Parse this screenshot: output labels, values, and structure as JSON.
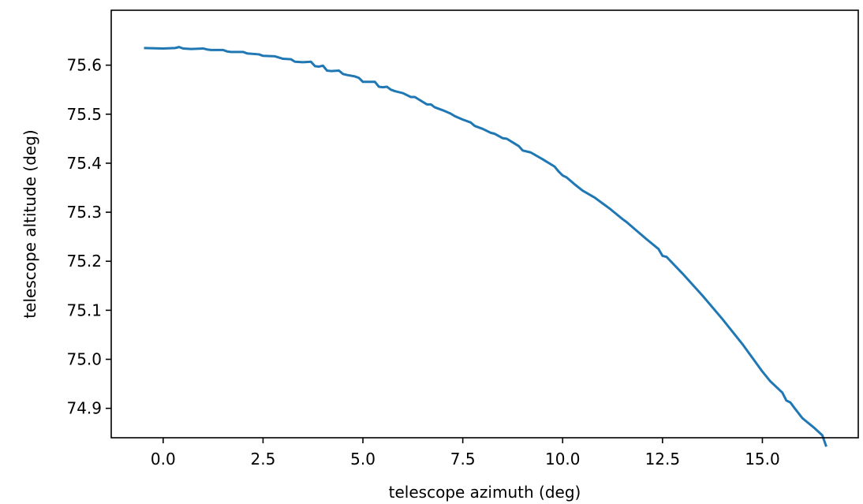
{
  "chart_data": {
    "type": "line",
    "title": "",
    "xlabel": "telescope azimuth (deg)",
    "ylabel": "telescope altitude (deg)",
    "xlim": [
      -1.3,
      17.4
    ],
    "ylim": [
      74.84,
      75.712
    ],
    "xticks": [
      0.0,
      2.5,
      5.0,
      7.5,
      10.0,
      12.5,
      15.0
    ],
    "xtick_labels": [
      "0.0",
      "2.5",
      "5.0",
      "7.5",
      "10.0",
      "12.5",
      "15.0"
    ],
    "yticks": [
      74.9,
      75.0,
      75.1,
      75.2,
      75.3,
      75.4,
      75.5,
      75.6
    ],
    "ytick_labels": [
      "74.9",
      "75.0",
      "75.1",
      "75.2",
      "75.3",
      "75.4",
      "75.5",
      "75.6"
    ],
    "grid": false,
    "legend": null,
    "series": [
      {
        "color": "#1f77b4",
        "x": [
          -0.48,
          0.0,
          0.3,
          0.4,
          0.5,
          0.7,
          1.0,
          1.1,
          1.2,
          1.5,
          1.6,
          1.7,
          2.0,
          2.1,
          2.4,
          2.5,
          2.8,
          3.0,
          3.2,
          3.3,
          3.5,
          3.7,
          3.8,
          3.9,
          4.0,
          4.1,
          4.2,
          4.4,
          4.5,
          4.6,
          4.8,
          4.9,
          5.0,
          5.3,
          5.4,
          5.5,
          5.6,
          5.7,
          5.8,
          6.0,
          6.2,
          6.3,
          6.4,
          6.6,
          6.7,
          6.8,
          7.0,
          7.2,
          7.3,
          7.5,
          7.7,
          7.8,
          8.0,
          8.2,
          8.3,
          8.5,
          8.6,
          8.8,
          8.9,
          9.0,
          9.2,
          9.5,
          9.8,
          9.9,
          10.0,
          10.1,
          10.3,
          10.5,
          10.8,
          11.0,
          11.2,
          11.5,
          11.6,
          11.8,
          12.1,
          12.4,
          12.5,
          12.6,
          13.0,
          13.5,
          14.0,
          14.5,
          15.0,
          15.2,
          15.5,
          15.6,
          15.7,
          15.8,
          16.0,
          16.3,
          16.5,
          16.6
        ],
        "y": [
          75.635,
          75.634,
          75.635,
          75.637,
          75.634,
          75.633,
          75.634,
          75.632,
          75.631,
          75.631,
          75.628,
          75.627,
          75.627,
          75.624,
          75.622,
          75.619,
          75.618,
          75.613,
          75.612,
          75.607,
          75.606,
          75.607,
          75.598,
          75.597,
          75.599,
          75.589,
          75.588,
          75.589,
          75.582,
          75.58,
          75.577,
          75.574,
          75.566,
          75.566,
          75.556,
          75.555,
          75.556,
          75.55,
          75.547,
          75.543,
          75.535,
          75.535,
          75.53,
          75.52,
          75.52,
          75.514,
          75.508,
          75.501,
          75.496,
          75.489,
          75.483,
          75.476,
          75.47,
          75.462,
          75.46,
          75.451,
          75.45,
          75.44,
          75.435,
          75.426,
          75.422,
          75.408,
          75.393,
          75.383,
          75.375,
          75.371,
          75.357,
          75.344,
          75.33,
          75.318,
          75.306,
          75.286,
          75.28,
          75.266,
          75.245,
          75.225,
          75.211,
          75.209,
          75.175,
          75.13,
          75.082,
          75.031,
          74.975,
          74.955,
          74.932,
          74.916,
          74.912,
          74.901,
          74.88,
          74.86,
          74.845,
          74.822
        ]
      }
    ]
  }
}
